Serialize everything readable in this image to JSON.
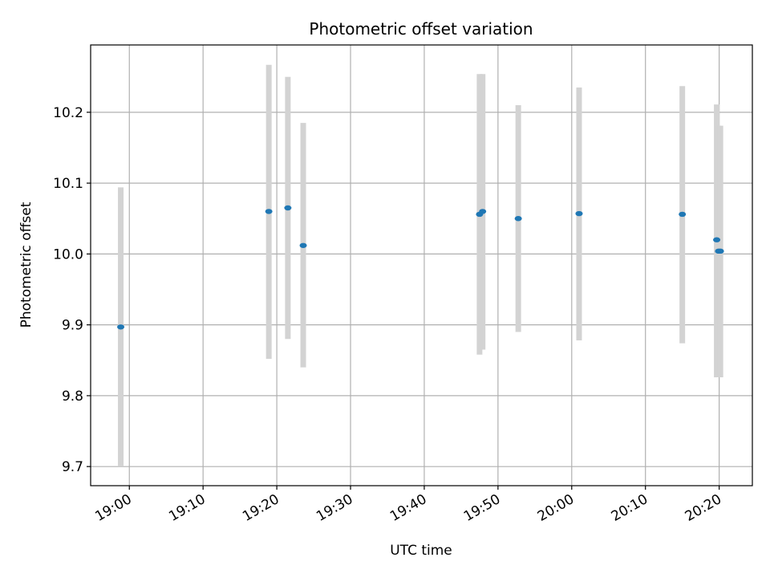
{
  "chart_data": {
    "type": "scatter",
    "title": "Photometric offset variation",
    "xlabel": "UTC time",
    "ylabel": "Photometric offset",
    "x_tick_labels": [
      "19:00",
      "19:10",
      "19:20",
      "19:30",
      "19:40",
      "19:50",
      "20:00",
      "20:10",
      "20:20"
    ],
    "y_tick_labels": [
      "9.7",
      "9.8",
      "9.9",
      "10.0",
      "10.1",
      "10.2"
    ],
    "x_range": [
      "18:54:45",
      "20:24:30"
    ],
    "ylim": [
      9.673,
      10.295
    ],
    "grid": true,
    "legend": "none",
    "point_color": "#1f77b4",
    "errorbar_color": "#d3d3d3",
    "points": [
      {
        "x": "18:58:50",
        "y": 9.897,
        "err_low": 9.7,
        "err_high": 10.094
      },
      {
        "x": "19:18:55",
        "y": 10.06,
        "err_low": 9.852,
        "err_high": 10.267
      },
      {
        "x": "19:21:30",
        "y": 10.065,
        "err_low": 9.88,
        "err_high": 10.25
      },
      {
        "x": "19:23:35",
        "y": 10.012,
        "err_low": 9.84,
        "err_high": 10.185
      },
      {
        "x": "19:47:30",
        "y": 10.056,
        "err_low": 9.858,
        "err_high": 10.254
      },
      {
        "x": "19:47:55",
        "y": 10.06,
        "err_low": 9.865,
        "err_high": 10.254
      },
      {
        "x": "19:52:45",
        "y": 10.05,
        "err_low": 9.89,
        "err_high": 10.21
      },
      {
        "x": "20:01:00",
        "y": 10.057,
        "err_low": 9.878,
        "err_high": 10.235
      },
      {
        "x": "20:15:00",
        "y": 10.056,
        "err_low": 9.874,
        "err_high": 10.237
      },
      {
        "x": "20:19:40",
        "y": 10.02,
        "err_low": 9.826,
        "err_high": 10.211
      },
      {
        "x": "20:19:55",
        "y": 10.004,
        "err_low": 9.826,
        "err_high": 10.181
      },
      {
        "x": "20:20:10",
        "y": 10.004,
        "err_low": 9.826,
        "err_high": 10.181
      }
    ]
  }
}
